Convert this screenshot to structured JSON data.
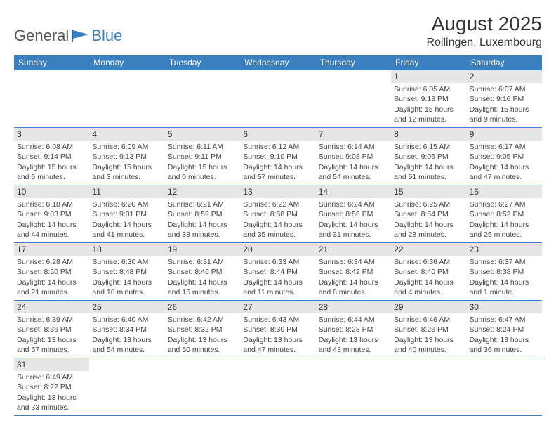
{
  "logo": {
    "text1": "General",
    "text2": "Blue"
  },
  "header": {
    "title": "August 2025",
    "location": "Rollingen, Luxembourg"
  },
  "colors": {
    "header_bg": "#3a7fc0",
    "header_text": "#ffffff",
    "daynum_bg": "#e5e5e5",
    "border": "#3a7fc0"
  },
  "day_names": [
    "Sunday",
    "Monday",
    "Tuesday",
    "Wednesday",
    "Thursday",
    "Friday",
    "Saturday"
  ],
  "weeks": [
    [
      null,
      null,
      null,
      null,
      null,
      {
        "n": "1",
        "sr": "Sunrise: 6:05 AM",
        "ss": "Sunset: 9:18 PM",
        "dl": "Daylight: 15 hours and 12 minutes."
      },
      {
        "n": "2",
        "sr": "Sunrise: 6:07 AM",
        "ss": "Sunset: 9:16 PM",
        "dl": "Daylight: 15 hours and 9 minutes."
      }
    ],
    [
      {
        "n": "3",
        "sr": "Sunrise: 6:08 AM",
        "ss": "Sunset: 9:14 PM",
        "dl": "Daylight: 15 hours and 6 minutes."
      },
      {
        "n": "4",
        "sr": "Sunrise: 6:09 AM",
        "ss": "Sunset: 9:13 PM",
        "dl": "Daylight: 15 hours and 3 minutes."
      },
      {
        "n": "5",
        "sr": "Sunrise: 6:11 AM",
        "ss": "Sunset: 9:11 PM",
        "dl": "Daylight: 15 hours and 0 minutes."
      },
      {
        "n": "6",
        "sr": "Sunrise: 6:12 AM",
        "ss": "Sunset: 9:10 PM",
        "dl": "Daylight: 14 hours and 57 minutes."
      },
      {
        "n": "7",
        "sr": "Sunrise: 6:14 AM",
        "ss": "Sunset: 9:08 PM",
        "dl": "Daylight: 14 hours and 54 minutes."
      },
      {
        "n": "8",
        "sr": "Sunrise: 6:15 AM",
        "ss": "Sunset: 9:06 PM",
        "dl": "Daylight: 14 hours and 51 minutes."
      },
      {
        "n": "9",
        "sr": "Sunrise: 6:17 AM",
        "ss": "Sunset: 9:05 PM",
        "dl": "Daylight: 14 hours and 47 minutes."
      }
    ],
    [
      {
        "n": "10",
        "sr": "Sunrise: 6:18 AM",
        "ss": "Sunset: 9:03 PM",
        "dl": "Daylight: 14 hours and 44 minutes."
      },
      {
        "n": "11",
        "sr": "Sunrise: 6:20 AM",
        "ss": "Sunset: 9:01 PM",
        "dl": "Daylight: 14 hours and 41 minutes."
      },
      {
        "n": "12",
        "sr": "Sunrise: 6:21 AM",
        "ss": "Sunset: 8:59 PM",
        "dl": "Daylight: 14 hours and 38 minutes."
      },
      {
        "n": "13",
        "sr": "Sunrise: 6:22 AM",
        "ss": "Sunset: 8:58 PM",
        "dl": "Daylight: 14 hours and 35 minutes."
      },
      {
        "n": "14",
        "sr": "Sunrise: 6:24 AM",
        "ss": "Sunset: 8:56 PM",
        "dl": "Daylight: 14 hours and 31 minutes."
      },
      {
        "n": "15",
        "sr": "Sunrise: 6:25 AM",
        "ss": "Sunset: 8:54 PM",
        "dl": "Daylight: 14 hours and 28 minutes."
      },
      {
        "n": "16",
        "sr": "Sunrise: 6:27 AM",
        "ss": "Sunset: 8:52 PM",
        "dl": "Daylight: 14 hours and 25 minutes."
      }
    ],
    [
      {
        "n": "17",
        "sr": "Sunrise: 6:28 AM",
        "ss": "Sunset: 8:50 PM",
        "dl": "Daylight: 14 hours and 21 minutes."
      },
      {
        "n": "18",
        "sr": "Sunrise: 6:30 AM",
        "ss": "Sunset: 8:48 PM",
        "dl": "Daylight: 14 hours and 18 minutes."
      },
      {
        "n": "19",
        "sr": "Sunrise: 6:31 AM",
        "ss": "Sunset: 8:46 PM",
        "dl": "Daylight: 14 hours and 15 minutes."
      },
      {
        "n": "20",
        "sr": "Sunrise: 6:33 AM",
        "ss": "Sunset: 8:44 PM",
        "dl": "Daylight: 14 hours and 11 minutes."
      },
      {
        "n": "21",
        "sr": "Sunrise: 6:34 AM",
        "ss": "Sunset: 8:42 PM",
        "dl": "Daylight: 14 hours and 8 minutes."
      },
      {
        "n": "22",
        "sr": "Sunrise: 6:36 AM",
        "ss": "Sunset: 8:40 PM",
        "dl": "Daylight: 14 hours and 4 minutes."
      },
      {
        "n": "23",
        "sr": "Sunrise: 6:37 AM",
        "ss": "Sunset: 8:38 PM",
        "dl": "Daylight: 14 hours and 1 minute."
      }
    ],
    [
      {
        "n": "24",
        "sr": "Sunrise: 6:39 AM",
        "ss": "Sunset: 8:36 PM",
        "dl": "Daylight: 13 hours and 57 minutes."
      },
      {
        "n": "25",
        "sr": "Sunrise: 6:40 AM",
        "ss": "Sunset: 8:34 PM",
        "dl": "Daylight: 13 hours and 54 minutes."
      },
      {
        "n": "26",
        "sr": "Sunrise: 6:42 AM",
        "ss": "Sunset: 8:32 PM",
        "dl": "Daylight: 13 hours and 50 minutes."
      },
      {
        "n": "27",
        "sr": "Sunrise: 6:43 AM",
        "ss": "Sunset: 8:30 PM",
        "dl": "Daylight: 13 hours and 47 minutes."
      },
      {
        "n": "28",
        "sr": "Sunrise: 6:44 AM",
        "ss": "Sunset: 8:28 PM",
        "dl": "Daylight: 13 hours and 43 minutes."
      },
      {
        "n": "29",
        "sr": "Sunrise: 6:46 AM",
        "ss": "Sunset: 8:26 PM",
        "dl": "Daylight: 13 hours and 40 minutes."
      },
      {
        "n": "30",
        "sr": "Sunrise: 6:47 AM",
        "ss": "Sunset: 8:24 PM",
        "dl": "Daylight: 13 hours and 36 minutes."
      }
    ],
    [
      {
        "n": "31",
        "sr": "Sunrise: 6:49 AM",
        "ss": "Sunset: 8:22 PM",
        "dl": "Daylight: 13 hours and 33 minutes."
      },
      null,
      null,
      null,
      null,
      null,
      null
    ]
  ]
}
